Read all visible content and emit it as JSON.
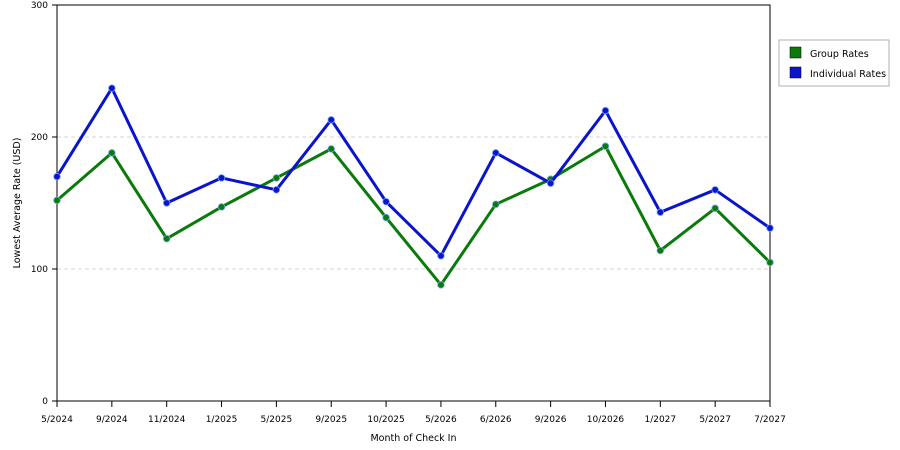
{
  "chart_data": {
    "type": "line",
    "xlabel": "Month of Check In",
    "ylabel": "Lowest Average Rate (USD)",
    "ylim": [
      0,
      300
    ],
    "yticks": [
      0,
      100,
      200,
      300
    ],
    "grid": "horizontal dashed",
    "legend_position": "right",
    "categories": [
      "5/2024",
      "9/2024",
      "11/2024",
      "1/2025",
      "5/2025",
      "9/2025",
      "10/2025",
      "5/2026",
      "6/2026",
      "9/2026",
      "10/2026",
      "1/2027",
      "5/2027",
      "7/2027"
    ],
    "series": [
      {
        "name": "Group Rates",
        "color": "#0a7a0a",
        "values": [
          152,
          188,
          123,
          147,
          169,
          191,
          139,
          88,
          149,
          168,
          193,
          114,
          146,
          105
        ]
      },
      {
        "name": "Individual Rates",
        "color": "#0a14cc",
        "values": [
          170,
          237,
          150,
          169,
          160,
          213,
          151,
          110,
          188,
          165,
          220,
          143,
          160,
          131
        ]
      }
    ]
  }
}
